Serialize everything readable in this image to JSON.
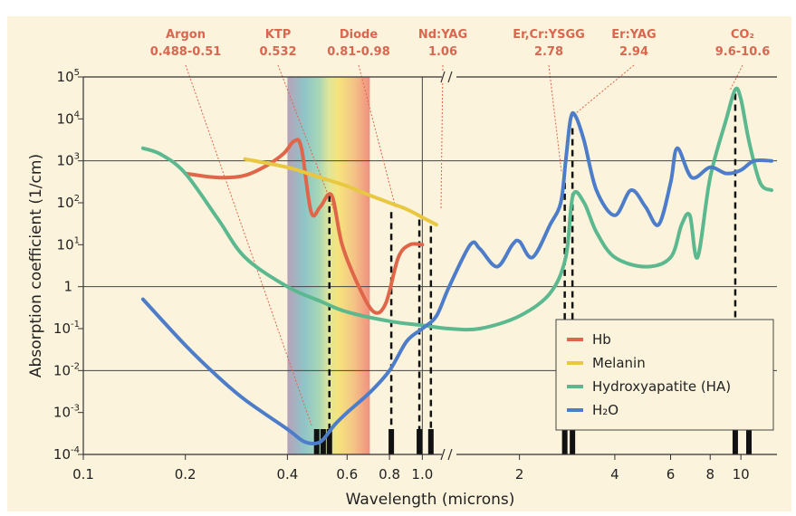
{
  "chart_data": {
    "type": "line",
    "title": "",
    "xlabel": "Wavelength (microns)",
    "ylabel": "Absorption coefficient (1/cm)",
    "x_scale": "log-broken",
    "y_scale": "log",
    "xlim": [
      0.1,
      13
    ],
    "ylim": [
      0.0001,
      100000
    ],
    "x_tick_labels": [
      "0.1",
      "0.2",
      "0.4",
      "0.6",
      "0.8",
      "1.0",
      "2",
      "4",
      "6",
      "8",
      "10"
    ],
    "y_tick_labels": [
      {
        "base": "10",
        "exp": "5"
      },
      {
        "base": "10",
        "exp": "4"
      },
      {
        "base": "10",
        "exp": "3"
      },
      {
        "base": "10",
        "exp": "2"
      },
      {
        "base": "10",
        "exp": "1"
      },
      {
        "base": "1",
        "exp": ""
      },
      {
        "base": "10",
        "exp": "-1"
      },
      {
        "base": "10",
        "exp": "-2"
      },
      {
        "base": "10",
        "exp": "-3"
      },
      {
        "base": "10",
        "exp": "-4"
      }
    ],
    "legend_position": "bottom-right",
    "series": [
      {
        "name": "Hb",
        "color": "#e0664a",
        "x": [
          0.2,
          0.25,
          0.3,
          0.35,
          0.39,
          0.42,
          0.44,
          0.47,
          0.5,
          0.54,
          0.58,
          0.65,
          0.72,
          0.78,
          0.85,
          0.92,
          1.0
        ],
        "y": [
          500,
          400,
          450,
          800,
          1500,
          3000,
          2000,
          60,
          80,
          150,
          10,
          1.0,
          0.25,
          0.4,
          5,
          10,
          10
        ]
      },
      {
        "name": "Melanin",
        "color": "#e8c840",
        "x": [
          0.3,
          0.4,
          0.5,
          0.6,
          0.7,
          0.8,
          0.9,
          1.0,
          1.1
        ],
        "y": [
          1100,
          700,
          400,
          250,
          150,
          100,
          70,
          45,
          30
        ]
      },
      {
        "name": "Hydroxyapatite (HA)",
        "color": "#5cb88e",
        "x": [
          0.15,
          0.17,
          0.2,
          0.25,
          0.3,
          0.4,
          0.5,
          0.6,
          0.8,
          1.0,
          1.2,
          1.5,
          2,
          2.5,
          2.8,
          2.95,
          3.2,
          3.5,
          4,
          5,
          6,
          6.5,
          6.9,
          7.3,
          8,
          9,
          9.6,
          10,
          10.6,
          11.5,
          12.5
        ],
        "y": [
          2000,
          1400,
          500,
          40,
          5,
          1.0,
          0.45,
          0.25,
          0.15,
          0.12,
          0.1,
          0.1,
          0.2,
          0.7,
          5,
          150,
          100,
          20,
          5,
          3,
          5,
          30,
          50,
          5,
          400,
          10000,
          50000,
          30000,
          3000,
          300,
          200
        ]
      },
      {
        "name": "H₂O",
        "color": "#4d7dc9",
        "x": [
          0.15,
          0.2,
          0.25,
          0.3,
          0.4,
          0.45,
          0.5,
          0.55,
          0.6,
          0.7,
          0.8,
          0.9,
          1.0,
          1.1,
          1.2,
          1.4,
          1.5,
          1.7,
          1.9,
          2.0,
          2.2,
          2.5,
          2.7,
          2.8,
          2.9,
          3.0,
          3.2,
          3.5,
          4,
          4.5,
          5,
          5.5,
          6,
          6.3,
          7,
          8,
          9,
          10,
          11,
          12.5
        ],
        "y": [
          0.5,
          0.04,
          0.007,
          0.002,
          0.0004,
          0.0002,
          0.0002,
          0.0005,
          0.001,
          0.003,
          0.01,
          0.05,
          0.1,
          0.2,
          1.0,
          10,
          8,
          3,
          10,
          12,
          5,
          30,
          100,
          1000,
          10000,
          12000,
          3000,
          200,
          50,
          200,
          80,
          30,
          300,
          2000,
          400,
          700,
          500,
          600,
          1000,
          1000
        ]
      }
    ],
    "laser_lines": [
      {
        "name": "Argon",
        "range": "0.488-0.51",
        "x": [
          0.488,
          0.51
        ]
      },
      {
        "name": "KTP",
        "range": "0.532",
        "x": [
          0.532
        ]
      },
      {
        "name": "Diode",
        "range": "0.81-0.98",
        "x": [
          0.81,
          0.98
        ]
      },
      {
        "name": "Nd:YAG",
        "range": "1.06",
        "x": [
          1.06
        ]
      },
      {
        "name": "Er,Cr:YSGG",
        "range": "2.78",
        "x": [
          2.78
        ]
      },
      {
        "name": "Er:YAG",
        "range": "2.94",
        "x": [
          2.94
        ]
      },
      {
        "name": "CO₂",
        "range": "9.6-10.6",
        "x": [
          9.6,
          10.6
        ]
      }
    ],
    "colors": {
      "background": "#fbf3dc",
      "laser_label": "#d96750"
    }
  }
}
